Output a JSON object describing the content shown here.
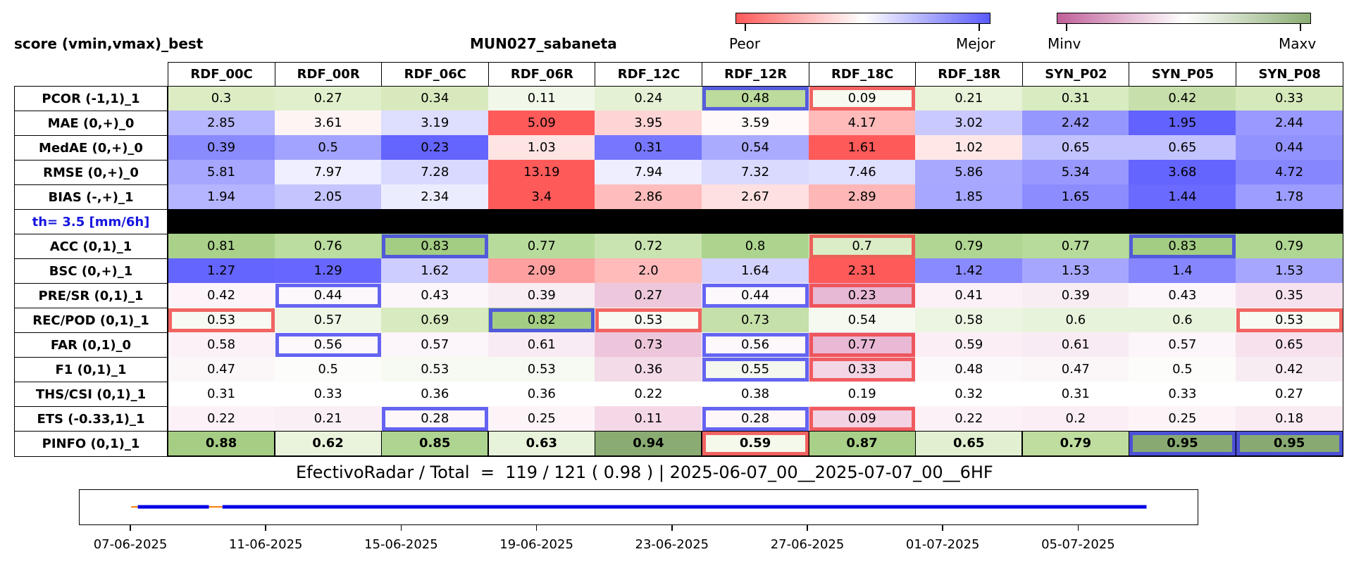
{
  "header": {
    "left_title": "score (vmin,vmax)_best",
    "center_title": "MUN027_sabaneta"
  },
  "colorbars": [
    {
      "name": "peor-mejor",
      "low_label": "Peor",
      "high_label": "Mejor",
      "low_color": "#ff5a5a",
      "mid_color": "#ffffff",
      "high_color": "#5a5aff"
    },
    {
      "name": "minv-maxv",
      "low_label": "Minv",
      "high_label": "Maxv",
      "low_color": "#c0609a",
      "mid_color": "#ffffff",
      "high_color": "#8aac73"
    }
  ],
  "chart_data": {
    "type": "heatmap",
    "columns": [
      "RDF_00C",
      "RDF_00R",
      "RDF_06C",
      "RDF_06R",
      "RDF_12C",
      "RDF_12R",
      "RDF_18C",
      "RDF_18R",
      "SYN_P02",
      "SYN_P05",
      "SYN_P08"
    ],
    "rows": [
      {
        "label": "PCOR (-1,1)_1",
        "values": [
          "0.3",
          "0.27",
          "0.34",
          "0.11",
          "0.24",
          "0.48",
          "0.09",
          "0.21",
          "0.31",
          "0.42",
          "0.33"
        ],
        "colors": [
          "#dcedc4",
          "#e1f0cc",
          "#d8eabd",
          "#f1f8ea",
          "#e5f1d4",
          "#bcdb9c",
          "#f6faf0",
          "#e8f3d9",
          "#d9ebc0",
          "#c7e0ab",
          "#d6e9bb"
        ],
        "highlights": [
          {
            "col": 5,
            "kind": "best"
          },
          {
            "col": 6,
            "kind": "worst"
          }
        ]
      },
      {
        "label": "MAE (0,+)_0",
        "values": [
          "2.85",
          "3.61",
          "3.19",
          "5.09",
          "3.95",
          "3.59",
          "4.17",
          "3.02",
          "2.42",
          "1.95",
          "2.44"
        ],
        "colors": [
          "#b7b7ff",
          "#fff4f4",
          "#dedeff",
          "#ff5a5a",
          "#ffd4d4",
          "#fff9f9",
          "#ffbaba",
          "#c9c9ff",
          "#9696ff",
          "#6262ff",
          "#9999ff"
        ],
        "highlights": []
      },
      {
        "label": "MedAE (0,+)_0",
        "values": [
          "0.39",
          "0.5",
          "0.23",
          "1.03",
          "0.31",
          "0.54",
          "1.61",
          "1.02",
          "0.65",
          "0.65",
          "0.44"
        ],
        "colors": [
          "#8a8aff",
          "#a2a2ff",
          "#6464ff",
          "#ffe4e4",
          "#7676ff",
          "#aaaaff",
          "#ff5a5a",
          "#ffe7e7",
          "#c2c2ff",
          "#c2c2ff",
          "#9292ff"
        ],
        "highlights": []
      },
      {
        "label": "RMSE (0,+)_0",
        "values": [
          "5.81",
          "7.97",
          "7.28",
          "13.19",
          "7.94",
          "7.32",
          "7.46",
          "5.86",
          "5.34",
          "3.68",
          "4.72"
        ],
        "colors": [
          "#a6a6ff",
          "#efefff",
          "#d9d9ff",
          "#ff5a5a",
          "#eeeeff",
          "#dadaff",
          "#dfdfff",
          "#a8a8ff",
          "#9898ff",
          "#6464ff",
          "#8686ff"
        ],
        "highlights": []
      },
      {
        "label": "BIAS (-,+)_1",
        "values": [
          "1.94",
          "2.05",
          "2.34",
          "3.4",
          "2.86",
          "2.67",
          "2.89",
          "1.85",
          "1.65",
          "1.44",
          "1.78"
        ],
        "colors": [
          "#b4b4ff",
          "#c4c4ff",
          "#ececff",
          "#ff5a5a",
          "#ffbcbc",
          "#ffe0e0",
          "#ffb6b6",
          "#a7a7ff",
          "#8c8cff",
          "#6a6aff",
          "#9d9dff"
        ],
        "highlights": []
      },
      {
        "label": "th= 3.5 [mm/6h]",
        "values": [
          "",
          "",
          "",
          "",
          "",
          "",
          "",
          "",
          "",
          "",
          ""
        ],
        "colors": [
          "#000000",
          "#000000",
          "#000000",
          "#000000",
          "#000000",
          "#000000",
          "#000000",
          "#000000",
          "#000000",
          "#000000",
          "#000000"
        ],
        "separator": true,
        "highlights": []
      },
      {
        "label": "ACC (0,1)_1",
        "values": [
          "0.81",
          "0.76",
          "0.83",
          "0.77",
          "0.72",
          "0.8",
          "0.7",
          "0.79",
          "0.77",
          "0.83",
          "0.79"
        ],
        "colors": [
          "#a9d18a",
          "#bbdd9f",
          "#a3cd83",
          "#b7db9b",
          "#c9e4b1",
          "#acd48e",
          "#dbedc6",
          "#b0d693",
          "#b7db9b",
          "#a3cd83",
          "#b0d693"
        ],
        "highlights": [
          {
            "col": 2,
            "kind": "best"
          },
          {
            "col": 6,
            "kind": "worst"
          },
          {
            "col": 9,
            "kind": "best"
          }
        ]
      },
      {
        "label": "BSC (0,+)_1",
        "values": [
          "1.27",
          "1.29",
          "1.62",
          "2.09",
          "2.0",
          "1.64",
          "2.31",
          "1.42",
          "1.53",
          "1.4",
          "1.53"
        ],
        "colors": [
          "#6464ff",
          "#6767ff",
          "#cdcdff",
          "#ffa0a0",
          "#ffbaba",
          "#d3d3ff",
          "#ff5a5a",
          "#8a8aff",
          "#a6a6ff",
          "#8686ff",
          "#a6a6ff"
        ],
        "highlights": []
      },
      {
        "label": "PRE/SR (0,1)_1",
        "values": [
          "0.42",
          "0.44",
          "0.43",
          "0.39",
          "0.27",
          "0.44",
          "0.23",
          "0.41",
          "0.39",
          "0.43",
          "0.35"
        ],
        "colors": [
          "#fcf4f9",
          "#fdf8fb",
          "#fcf6fa",
          "#f9edf4",
          "#edc8dd",
          "#fdf8fb",
          "#e8b8d4",
          "#fbf1f7",
          "#f9edf4",
          "#fcf6fa",
          "#f6e2ee"
        ],
        "highlights": [
          {
            "col": 1,
            "kind": "best"
          },
          {
            "col": 5,
            "kind": "best"
          },
          {
            "col": 6,
            "kind": "worst"
          }
        ]
      },
      {
        "label": "REC/POD (0,1)_1",
        "values": [
          "0.53",
          "0.57",
          "0.69",
          "0.82",
          "0.53",
          "0.73",
          "0.54",
          "0.58",
          "0.6",
          "0.6",
          "0.53"
        ],
        "colors": [
          "#f7faf2",
          "#eff6e6",
          "#d8eabf",
          "#a3cd83",
          "#f7faf2",
          "#c5e0a9",
          "#f5f9ef",
          "#ecf5e2",
          "#e8f3dc",
          "#e8f3dc",
          "#f7faf2"
        ],
        "highlights": [
          {
            "col": 0,
            "kind": "worst"
          },
          {
            "col": 3,
            "kind": "best"
          },
          {
            "col": 4,
            "kind": "worst"
          },
          {
            "col": 10,
            "kind": "worst"
          }
        ]
      },
      {
        "label": "FAR (0,1)_0",
        "values": [
          "0.58",
          "0.56",
          "0.57",
          "0.61",
          "0.73",
          "0.56",
          "0.77",
          "0.59",
          "0.61",
          "0.57",
          "0.65"
        ],
        "colors": [
          "#fbf1f7",
          "#fdf8fb",
          "#fcf5f9",
          "#f9ebf3",
          "#edc6dc",
          "#fdf8fb",
          "#e8b8d4",
          "#fbeff5",
          "#f9ebf3",
          "#fcf5f9",
          "#f6e1ed"
        ],
        "highlights": [
          {
            "col": 1,
            "kind": "best"
          },
          {
            "col": 5,
            "kind": "best"
          },
          {
            "col": 6,
            "kind": "worst"
          }
        ]
      },
      {
        "label": "F1 (0,1)_1",
        "values": [
          "0.47",
          "0.5",
          "0.53",
          "0.53",
          "0.36",
          "0.55",
          "0.33",
          "0.48",
          "0.47",
          "0.5",
          "0.42"
        ],
        "colors": [
          "#fbf7f9",
          "#fcfcfa",
          "#f7faf2",
          "#f7faf2",
          "#f3dbe8",
          "#f4f8ee",
          "#f3d6e6",
          "#fcf9fa",
          "#fbf7f9",
          "#fcfcfa",
          "#f8ecf3"
        ],
        "highlights": [
          {
            "col": 5,
            "kind": "best"
          },
          {
            "col": 6,
            "kind": "worst"
          }
        ]
      },
      {
        "label": "THS/CSI (0,1)_1",
        "values": [
          "0.31",
          "0.33",
          "0.36",
          "0.36",
          "0.22",
          "0.38",
          "0.19",
          "0.32",
          "0.31",
          "0.33",
          "0.27"
        ],
        "colors": [
          "#ffffff",
          "#ffffff",
          "#ffffff",
          "#ffffff",
          "#ffffff",
          "#ffffff",
          "#ffffff",
          "#ffffff",
          "#ffffff",
          "#ffffff",
          "#ffffff"
        ],
        "highlights": []
      },
      {
        "label": "ETS (-0.33,1)_1",
        "values": [
          "0.22",
          "0.21",
          "0.28",
          "0.25",
          "0.11",
          "0.28",
          "0.09",
          "0.22",
          "0.2",
          "0.25",
          "0.18"
        ],
        "colors": [
          "#fcf1f7",
          "#fbeff6",
          "#fdf7fa",
          "#fdf4f8",
          "#f5d8e7",
          "#fdf7fa",
          "#f3d2e4",
          "#fcf1f7",
          "#fbeef5",
          "#fdf4f8",
          "#faebf3"
        ],
        "highlights": [
          {
            "col": 2,
            "kind": "best"
          },
          {
            "col": 5,
            "kind": "best"
          },
          {
            "col": 6,
            "kind": "worst"
          }
        ]
      },
      {
        "label": "PINFO (0,1)_1",
        "values": [
          "0.88",
          "0.62",
          "0.85",
          "0.63",
          "0.94",
          "0.59",
          "0.87",
          "0.65",
          "0.79",
          "0.95",
          "0.95"
        ],
        "colors": [
          "#a5cd84",
          "#eaf4dd",
          "#aed491",
          "#e7f3da",
          "#8aac73",
          "#f4f9ec",
          "#a9d088",
          "#e1f0d0",
          "#bfdd9f",
          "#88aa72",
          "#88aa72"
        ],
        "bold": true,
        "highlights": [
          {
            "col": 5,
            "kind": "worst"
          },
          {
            "col": 9,
            "kind": "best"
          },
          {
            "col": 10,
            "kind": "best"
          }
        ]
      }
    ],
    "highlight_colors": {
      "best": "#3a3af0",
      "worst": "#f03a3a"
    },
    "timeline": {
      "tick_labels": [
        "07-06-2025",
        "11-06-2025",
        "15-06-2025",
        "19-06-2025",
        "23-06-2025",
        "27-06-2025",
        "01-07-2025",
        "05-07-2025"
      ],
      "x_range": [
        "2025-06-06",
        "2025-07-08"
      ],
      "segments": [
        {
          "start": "2025-06-07",
          "end": "2025-06-07.2",
          "color": "#ff7f0e"
        },
        {
          "start": "2025-06-07.2",
          "end": "2025-06-09.3",
          "color": "#0000e6"
        },
        {
          "start": "2025-06-09.3",
          "end": "2025-06-09.7",
          "color": "#ff7f0e"
        },
        {
          "start": "2025-06-09.7",
          "end": "2025-07-07",
          "color": "#0000e6"
        }
      ]
    }
  },
  "footer": {
    "summary": "EfectivoRadar / Total  =  119 / 121 ( 0.98 ) | 2025-06-07_00__2025-07-07_00__6HF"
  }
}
